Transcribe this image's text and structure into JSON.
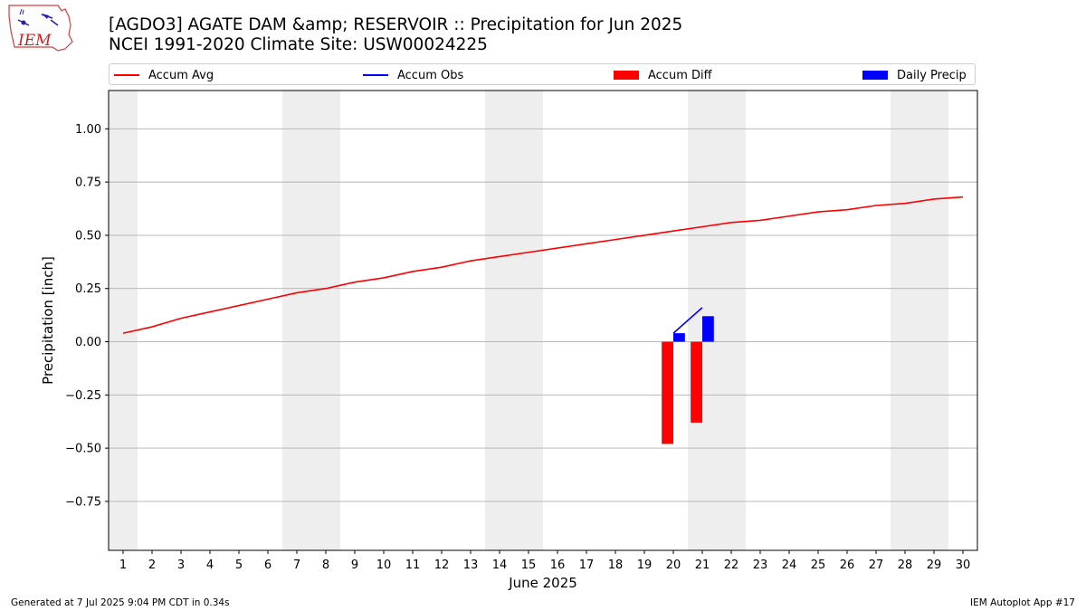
{
  "title_line1": "[AGDO3] AGATE DAM &amp; RESERVOIR :: Precipitation for Jun 2025",
  "title_line2": "NCEI 1991-2020 Climate Site: USW00024225",
  "logo_text": "IEM",
  "footer_left": "Generated at 7 Jul 2025 9:04 PM CDT in 0.34s",
  "footer_right": "IEM Autoplot App #17",
  "colors": {
    "accum_avg": "#ff0000",
    "accum_obs": "#0000ff",
    "accum_diff": "#ff0000",
    "daily_precip": "#0000ff",
    "weekend_shade": "#eeeeee",
    "grid": "#b0b0b0"
  },
  "chart_data": {
    "type": "bar",
    "xlabel": "June 2025",
    "ylabel": "Precipitation [inch]",
    "x": [
      1,
      2,
      3,
      4,
      5,
      6,
      7,
      8,
      9,
      10,
      11,
      12,
      13,
      14,
      15,
      16,
      17,
      18,
      19,
      20,
      21,
      22,
      23,
      24,
      25,
      26,
      27,
      28,
      29,
      30
    ],
    "x_ticks": [
      "1",
      "2",
      "3",
      "4",
      "5",
      "6",
      "7",
      "8",
      "9",
      "10",
      "11",
      "12",
      "13",
      "14",
      "15",
      "16",
      "17",
      "18",
      "19",
      "20",
      "21",
      "22",
      "23",
      "24",
      "25",
      "26",
      "27",
      "28",
      "29",
      "30"
    ],
    "xlim": [
      0.5,
      30.5
    ],
    "ylim": [
      -0.98,
      1.18
    ],
    "y_ticks": [
      -0.75,
      -0.5,
      -0.25,
      0.0,
      0.25,
      0.5,
      0.75,
      1.0
    ],
    "y_tick_labels": [
      "−0.75",
      "−0.50",
      "−0.25",
      "0.00",
      "0.25",
      "0.50",
      "0.75",
      "1.00"
    ],
    "grid": "horizontal",
    "weekend_shading": [
      [
        0.5,
        1.5
      ],
      [
        6.5,
        8.5
      ],
      [
        13.5,
        15.5
      ],
      [
        20.5,
        22.5
      ],
      [
        27.5,
        29.5
      ]
    ],
    "legend": {
      "placement": "top",
      "entries": [
        "Accum Avg",
        "Accum Obs",
        "Accum Diff",
        "Daily Precip"
      ]
    },
    "series": [
      {
        "name": "Accum Avg",
        "type": "line",
        "x": [
          1,
          2,
          3,
          4,
          5,
          6,
          7,
          8,
          9,
          10,
          11,
          12,
          13,
          14,
          15,
          16,
          17,
          18,
          19,
          20,
          21,
          22,
          23,
          24,
          25,
          26,
          27,
          28,
          29,
          30
        ],
        "values": [
          0.04,
          0.07,
          0.11,
          0.14,
          0.17,
          0.2,
          0.23,
          0.25,
          0.28,
          0.3,
          0.33,
          0.35,
          0.38,
          0.4,
          0.42,
          0.44,
          0.46,
          0.48,
          0.5,
          0.52,
          0.54,
          0.56,
          0.57,
          0.59,
          0.61,
          0.62,
          0.64,
          0.65,
          0.67,
          0.68
        ]
      },
      {
        "name": "Accum Obs",
        "type": "line",
        "x": [
          20,
          21
        ],
        "values": [
          0.04,
          0.16
        ]
      },
      {
        "name": "Accum Diff",
        "type": "bar",
        "x": [
          20,
          21
        ],
        "values": [
          -0.48,
          -0.38
        ]
      },
      {
        "name": "Daily Precip",
        "type": "bar",
        "x": [
          20,
          21
        ],
        "values": [
          0.04,
          0.12
        ]
      }
    ]
  }
}
